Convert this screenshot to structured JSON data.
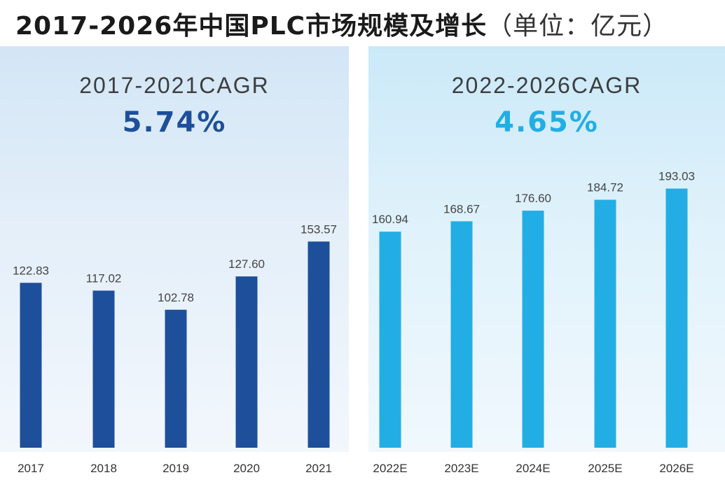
{
  "header": {
    "title": "2017-2026年中国PLC市场规模及增长",
    "unit": "（单位：亿元）"
  },
  "panels": {
    "left": {
      "cagr_label": "2017-2021CAGR",
      "cagr_value": "5.74%"
    },
    "right": {
      "cagr_label": "2022-2026CAGR",
      "cagr_value": "4.65%"
    }
  },
  "colors": {
    "actual_bar": "#1d4f9b",
    "forecast_bar": "#22aee5"
  },
  "chart_data": {
    "type": "bar",
    "title": "2017-2026年中国PLC市场规模及增长（单位：亿元）",
    "categories": [
      "2017",
      "2018",
      "2019",
      "2020",
      "2021",
      "2022E",
      "2023E",
      "2024E",
      "2025E",
      "2026E"
    ],
    "series": [
      {
        "values": [
          122.83,
          117.02,
          102.78,
          127.6,
          153.57,
          160.94,
          168.67,
          176.6,
          184.72,
          193.03
        ],
        "labels": [
          "122.83",
          "117.02",
          "102.78",
          "127.60",
          "153.57",
          "160.94",
          "168.67",
          "176.60",
          "184.72",
          "193.03"
        ]
      }
    ],
    "ylim": [
      0,
      200
    ],
    "grid": false,
    "legend": "none"
  }
}
